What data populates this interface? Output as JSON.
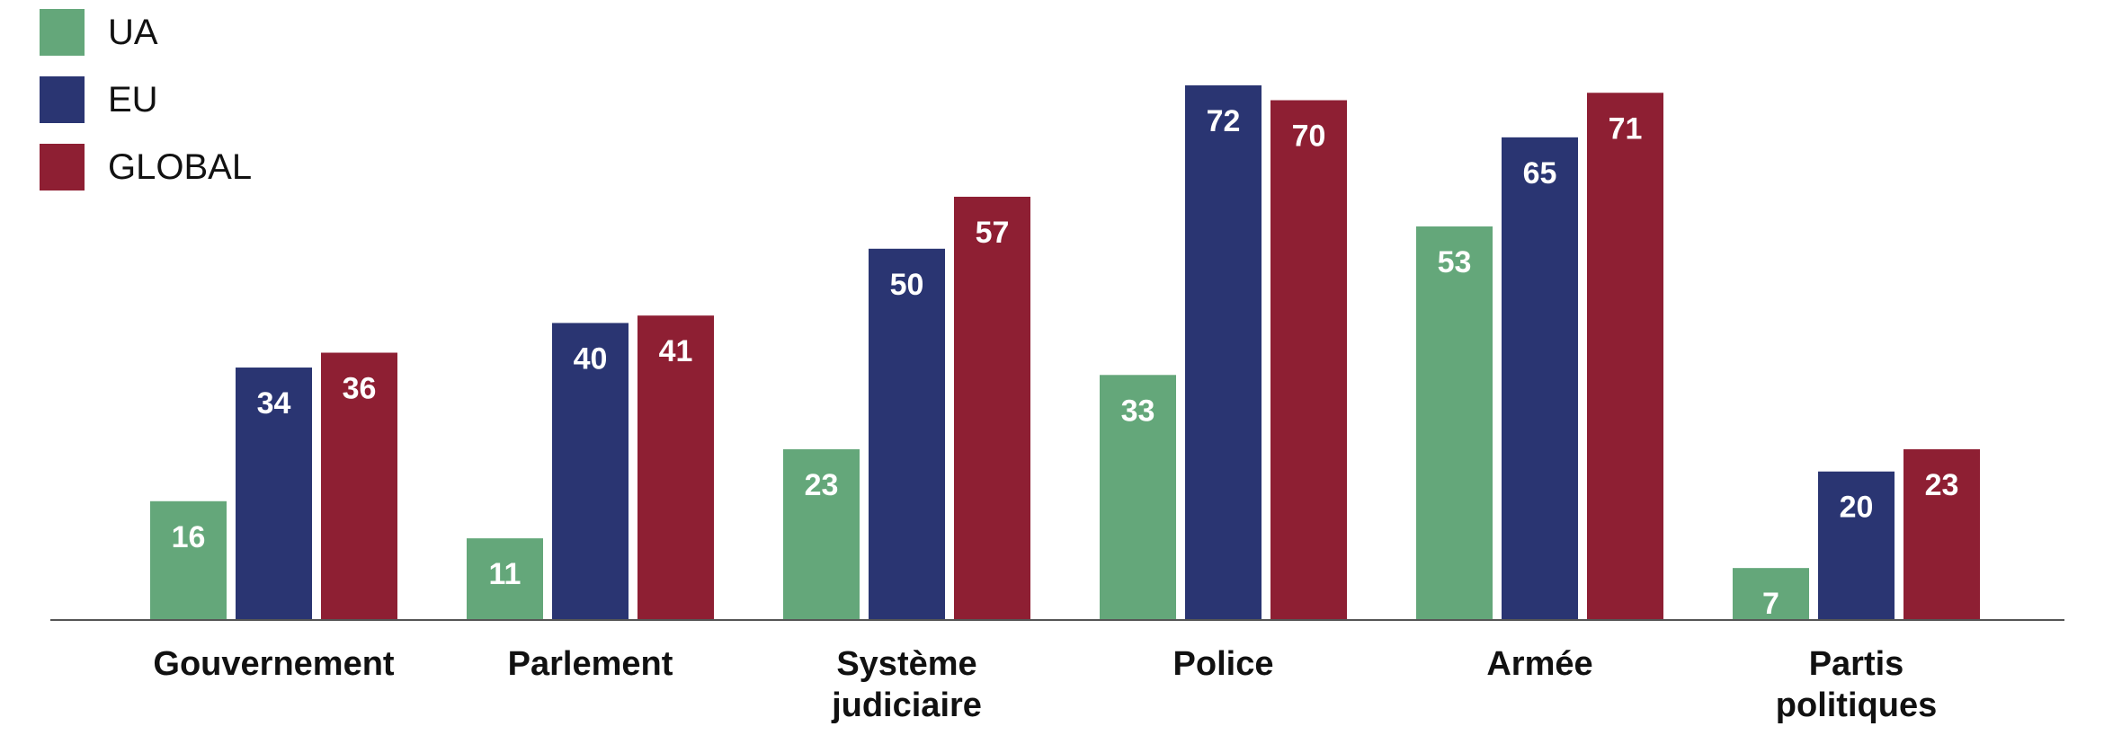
{
  "chart_data": {
    "type": "bar",
    "categories": [
      [
        "Gouvernement"
      ],
      [
        "Parlement"
      ],
      [
        "Système",
        "judiciaire"
      ],
      [
        "Police"
      ],
      [
        "Armée"
      ],
      [
        "Partis",
        "politiques"
      ]
    ],
    "series": [
      {
        "name": "UA",
        "color": "#64a77a",
        "values": [
          16,
          11,
          23,
          33,
          53,
          7
        ]
      },
      {
        "name": "EU",
        "color": "#2a3572",
        "values": [
          34,
          40,
          50,
          72,
          65,
          20
        ]
      },
      {
        "name": "GLOBAL",
        "color": "#8e1f33",
        "values": [
          36,
          41,
          57,
          70,
          71,
          23
        ]
      }
    ],
    "title": "",
    "xlabel": "",
    "ylabel": "",
    "ylim": [
      0,
      72
    ],
    "legend": "top-left",
    "grid": false,
    "baseline_color": "#555555"
  }
}
